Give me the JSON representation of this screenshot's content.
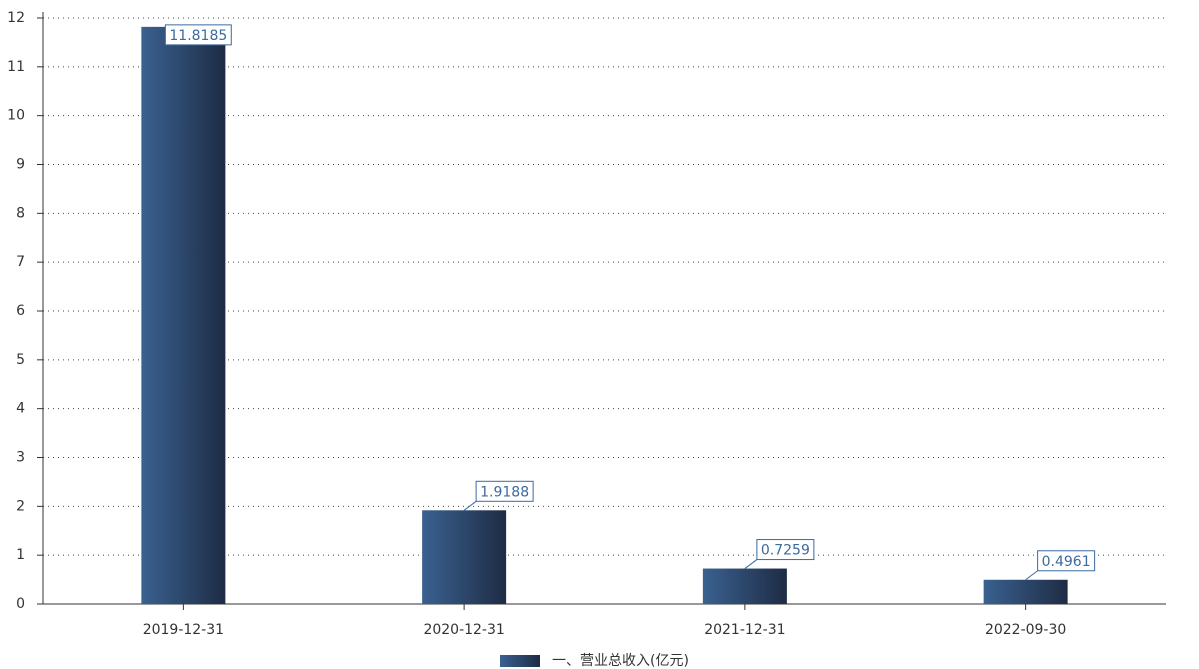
{
  "chart_data": {
    "type": "bar",
    "categories": [
      "2019-12-31",
      "2020-12-31",
      "2021-12-31",
      "2022-09-30"
    ],
    "series": [
      {
        "name": "一、营业总收入(亿元)",
        "color": "#2e4a70",
        "values": [
          11.8185,
          1.9188,
          0.7259,
          0.4961
        ]
      }
    ],
    "ylim": [
      0,
      12
    ],
    "yticks": [
      0,
      1,
      2,
      3,
      4,
      5,
      6,
      7,
      8,
      9,
      10,
      11,
      12
    ],
    "grid": true,
    "legend": "bottom"
  }
}
